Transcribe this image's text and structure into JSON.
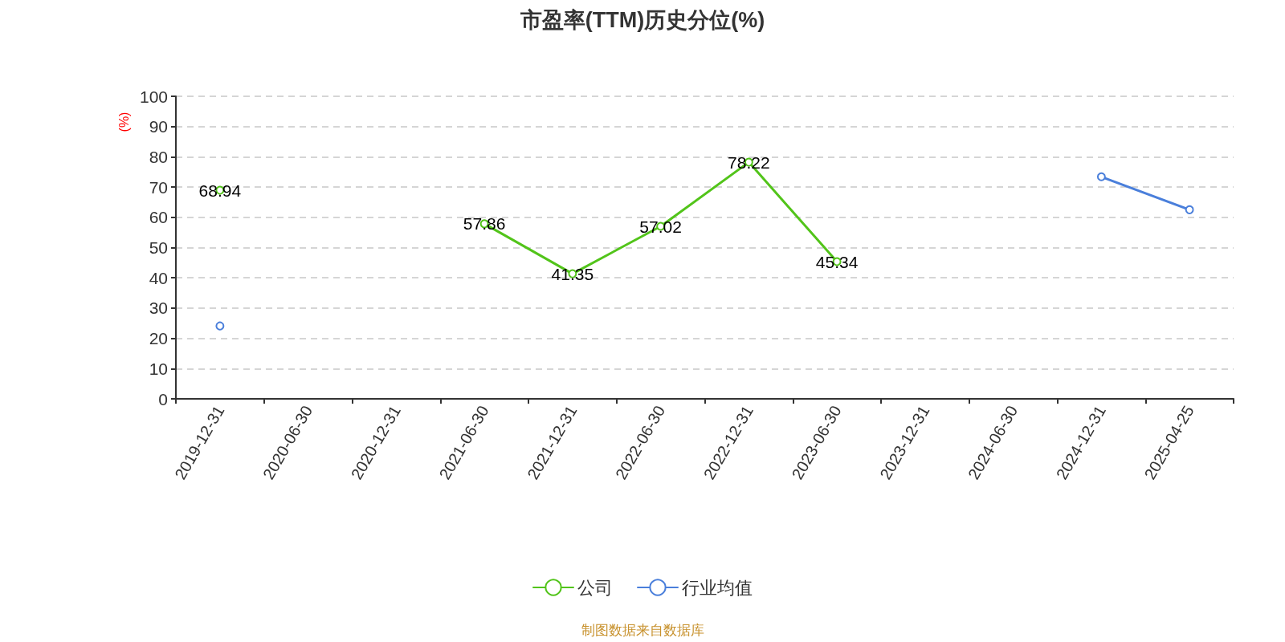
{
  "chart_data": {
    "type": "line",
    "title": "市盈率(TTM)历史分位(%)",
    "ylabel": "(%)",
    "categories": [
      "2019-12-31",
      "2020-06-30",
      "2020-12-31",
      "2021-06-30",
      "2021-12-31",
      "2022-06-30",
      "2022-12-31",
      "2023-06-30",
      "2023-12-31",
      "2024-06-30",
      "2024-12-31",
      "2025-04-25"
    ],
    "series": [
      {
        "name": "公司",
        "color": "#52c41a",
        "values": [
          68.94,
          null,
          null,
          57.86,
          41.35,
          57.02,
          78.22,
          45.34,
          null,
          null,
          null,
          null
        ],
        "value_labels": [
          "68.94",
          null,
          null,
          "57.86",
          "41.35",
          "57.02",
          "78.22",
          "45.34",
          null,
          null,
          null,
          null
        ]
      },
      {
        "name": "行业均值",
        "color": "#4a7fdb",
        "values": [
          24.1,
          null,
          null,
          null,
          null,
          null,
          null,
          null,
          null,
          null,
          73.4,
          62.5
        ]
      }
    ],
    "ylim": [
      0,
      100
    ],
    "yticks": [
      0,
      10,
      20,
      30,
      40,
      50,
      60,
      70,
      80,
      90,
      100
    ],
    "grid": "y",
    "legend": "bottom",
    "marker": "circle",
    "line_style": "solid",
    "annotations": [
      "制图数据来自数据库"
    ]
  }
}
